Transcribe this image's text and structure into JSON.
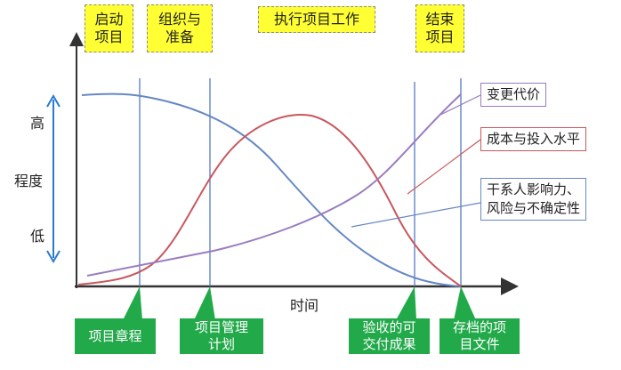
{
  "phases": [
    "启动\n项目",
    "组织与\n准备",
    "执行项目工作",
    "结束\n项目"
  ],
  "deliverables": [
    "项目章程",
    "项目管理\n计划",
    "验收的可\n交付成果",
    "存档的项\n目文件"
  ],
  "legend": {
    "change_cost": "变更代价",
    "cost_staffing": "成本与投入水平",
    "stakeholder_risk": "干系人影响力、\n风险与不确定性"
  },
  "y_axis": {
    "label": "程度",
    "high": "高",
    "low": "低"
  },
  "x_axis": {
    "label": "时间"
  },
  "colors": {
    "phase": "#ffff33",
    "deliverable": "#22a94a",
    "change_cost": "#9a7cc0",
    "cost_staffing": "#c8585e",
    "stakeholder_risk": "#6688c4",
    "milestone_line": "#4a6fc0"
  }
}
